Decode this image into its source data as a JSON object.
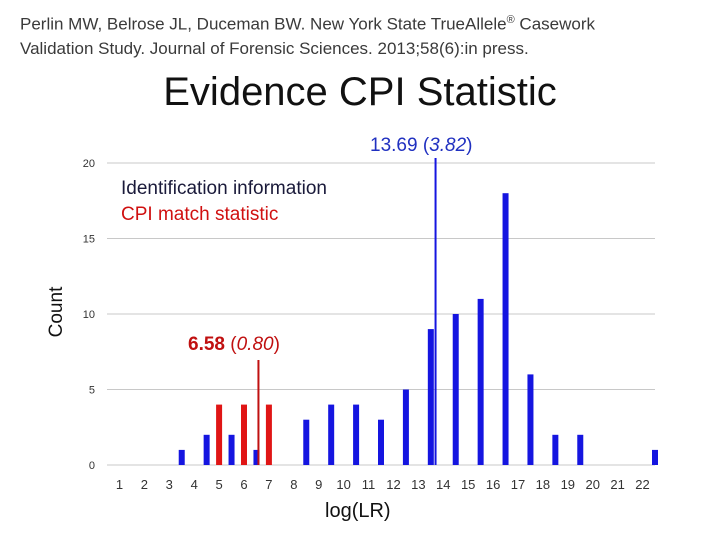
{
  "header": {
    "citation_line1": "Perlin MW, Belrose JL, Duceman BW. New York State TrueAllele",
    "citation_reg": "®",
    "citation_line1_end": " Casework",
    "citation_line2": "Validation Study. Journal of Forensic Sciences. 2013;58(6):in press.",
    "title": "Evidence CPI Statistic"
  },
  "annotations": {
    "identification": "Identification information",
    "cpi_match": "CPI match statistic",
    "blue_mean": "13.69",
    "blue_sd": "3.82",
    "red_mean": "6.58",
    "red_sd": "0.80"
  },
  "colors": {
    "blue_series": "#1515e0",
    "red_series": "#e01515",
    "grid": "#c8c8c8"
  },
  "chart_data": {
    "type": "bar",
    "xlabel": "log(LR)",
    "ylabel": "Count",
    "ylim": [
      0,
      20
    ],
    "yticks": [
      0,
      5,
      10,
      15,
      20
    ],
    "categories": [
      "1",
      "2",
      "3",
      "4",
      "5",
      "6",
      "7",
      "8",
      "9",
      "10",
      "11",
      "12",
      "13",
      "14",
      "15",
      "16",
      "17",
      "18",
      "19",
      "20",
      "21",
      "22"
    ],
    "grid": true,
    "series": [
      {
        "color": "#1515e0",
        "x": [
          3.5,
          4.5,
          5.5,
          6.5,
          8.5,
          9.5,
          10.5,
          11.5,
          12.5,
          13.5,
          14.5,
          15.5,
          16.5,
          17.5,
          18.5,
          19.5,
          22.5
        ],
        "values": [
          1,
          2,
          2,
          1,
          3,
          4,
          4,
          3,
          5,
          9,
          10,
          11,
          18,
          6,
          2,
          2,
          1
        ]
      },
      {
        "color": "#e01515",
        "x": [
          5.0,
          6.0,
          7.0
        ],
        "values": [
          4,
          4,
          4
        ]
      }
    ],
    "reference_lines": [
      {
        "x": 13.69,
        "color": "#1515e0",
        "label": "13.69 (3.82)"
      },
      {
        "x": 6.58,
        "color": "#c01010",
        "label": "6.58 (0.80)"
      }
    ]
  }
}
